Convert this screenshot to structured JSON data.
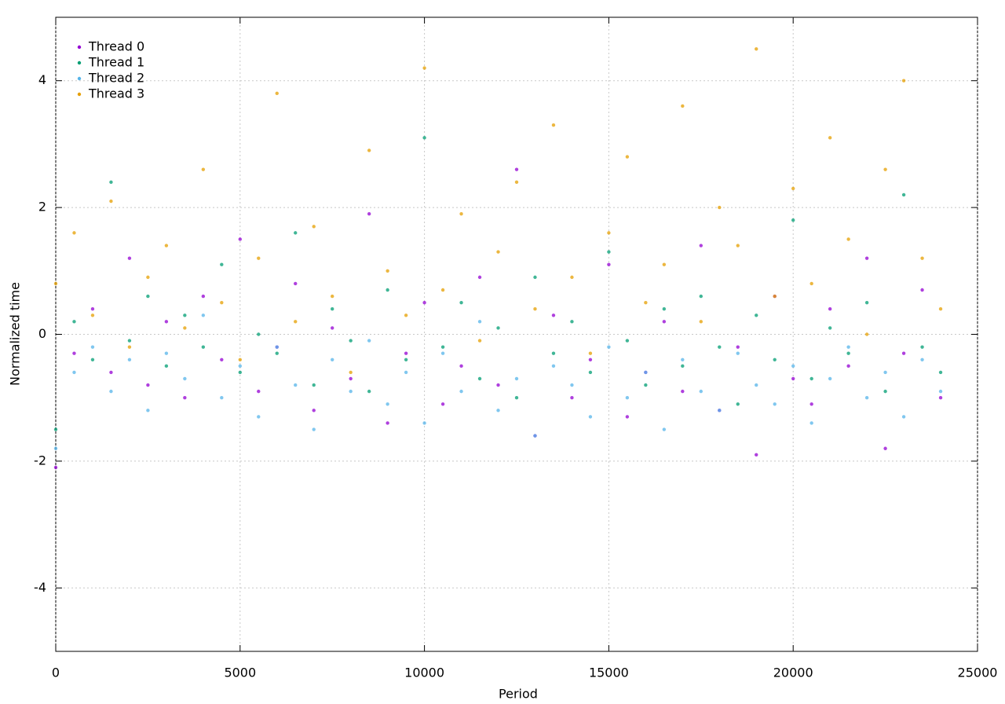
{
  "chart_data": {
    "type": "scatter",
    "xlabel": "Period",
    "ylabel": "Normalized time",
    "xlim": [
      0,
      25000
    ],
    "xticks": [
      0,
      5000,
      10000,
      15000,
      20000,
      25000
    ],
    "ylim": [
      -5,
      5
    ],
    "yticks": [
      -4,
      -2,
      0,
      2,
      4
    ],
    "grid": true,
    "legend": "top-left",
    "x": [
      0,
      500,
      1000,
      1500,
      2000,
      2500,
      3000,
      3500,
      4000,
      4500,
      5000,
      5500,
      6000,
      6500,
      7000,
      7500,
      8000,
      8500,
      9000,
      9500,
      10000,
      10500,
      11000,
      11500,
      12000,
      12500,
      13000,
      13500,
      14000,
      14500,
      15000,
      15500,
      16000,
      16500,
      17000,
      17500,
      18000,
      18500,
      19000,
      19500,
      20000,
      20500,
      21000,
      21500,
      22000,
      22500,
      23000,
      23500,
      24000
    ],
    "series": [
      {
        "name": "Thread 0",
        "color": "#9400d3",
        "values": [
          -2.1,
          -0.3,
          0.4,
          -0.6,
          1.2,
          -0.8,
          0.2,
          -1.0,
          0.6,
          -0.4,
          1.5,
          -0.9,
          -0.2,
          0.8,
          -1.2,
          0.1,
          -0.7,
          1.9,
          -1.4,
          -0.3,
          0.5,
          -1.1,
          -0.5,
          0.9,
          -0.8,
          2.6,
          -1.6,
          0.3,
          -1.0,
          -0.4,
          1.1,
          -1.3,
          -0.6,
          0.2,
          -0.9,
          1.4,
          -1.2,
          -0.2,
          -1.9,
          0.6,
          -0.7,
          -1.1,
          0.4,
          -0.5,
          1.2,
          -1.8,
          -0.3,
          0.7,
          -1.0
        ]
      },
      {
        "name": "Thread 1",
        "color": "#009e73",
        "values": [
          -1.5,
          0.2,
          -0.4,
          2.4,
          -0.1,
          0.6,
          -0.5,
          0.3,
          -0.2,
          1.1,
          -0.6,
          0.0,
          -0.3,
          1.6,
          -0.8,
          0.4,
          -0.1,
          -0.9,
          0.7,
          -0.4,
          3.1,
          -0.2,
          0.5,
          -0.7,
          0.1,
          -1.0,
          0.9,
          -0.3,
          0.2,
          -0.6,
          1.3,
          -0.1,
          -0.8,
          0.4,
          -0.5,
          0.6,
          -0.2,
          -1.1,
          0.3,
          -0.4,
          1.8,
          -0.7,
          0.1,
          -0.3,
          0.5,
          -0.9,
          2.2,
          -0.2,
          -0.6
        ]
      },
      {
        "name": "Thread 2",
        "color": "#56b4e9",
        "values": [
          -1.8,
          -0.6,
          -0.2,
          -0.9,
          -0.4,
          -1.2,
          -0.3,
          -0.7,
          0.3,
          -1.0,
          -0.5,
          -1.3,
          -0.2,
          -0.8,
          -1.5,
          -0.4,
          -0.9,
          -0.1,
          -1.1,
          -0.6,
          -1.4,
          -0.3,
          -0.9,
          0.2,
          -1.2,
          -0.7,
          -1.6,
          -0.5,
          -0.8,
          -1.3,
          -0.2,
          -1.0,
          -0.6,
          -1.5,
          -0.4,
          -0.9,
          -1.2,
          -0.3,
          -0.8,
          -1.1,
          -0.5,
          -1.4,
          -0.7,
          -0.2,
          -1.0,
          -0.6,
          -1.3,
          -0.4,
          -0.9
        ]
      },
      {
        "name": "Thread 3",
        "color": "#e69f00",
        "values": [
          0.8,
          1.6,
          0.3,
          2.1,
          -0.2,
          0.9,
          1.4,
          0.1,
          2.6,
          0.5,
          -0.4,
          1.2,
          3.8,
          0.2,
          1.7,
          0.6,
          -0.6,
          2.9,
          1.0,
          0.3,
          4.2,
          0.7,
          1.9,
          -0.1,
          1.3,
          2.4,
          0.4,
          3.3,
          0.9,
          -0.3,
          1.6,
          2.8,
          0.5,
          1.1,
          3.6,
          0.2,
          2.0,
          1.4,
          4.5,
          0.6,
          2.3,
          0.8,
          3.1,
          1.5,
          0.0,
          2.6,
          4.0,
          1.2,
          0.4
        ]
      }
    ]
  }
}
